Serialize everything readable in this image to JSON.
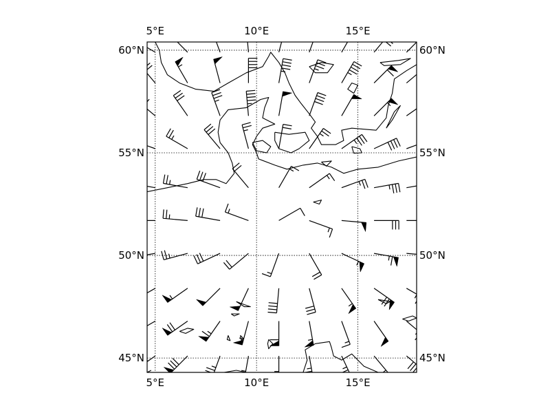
{
  "map": {
    "projection": "cylindrical",
    "lon_range": [
      4.6,
      17.9
    ],
    "lat_range": [
      44.3,
      60.4
    ],
    "colors": {
      "coastline": "#000000",
      "barbs": "#000000",
      "background": "#ffffff"
    },
    "grid": {
      "on": true,
      "style": "dotted"
    },
    "x_ticks": [
      {
        "lon": 5,
        "label": "5°E"
      },
      {
        "lon": 10,
        "label": "10°E"
      },
      {
        "lon": 15,
        "label": "15°E"
      }
    ],
    "y_ticks": [
      {
        "lat": 60,
        "label": "60°N"
      },
      {
        "lat": 55,
        "label": "55°N"
      },
      {
        "lat": 50,
        "label": "50°N"
      },
      {
        "lat": 45,
        "label": "45°N"
      }
    ],
    "coastlines": [
      [
        [
          4.6,
          53.1
        ],
        [
          5.6,
          53.3
        ],
        [
          6.6,
          53.5
        ],
        [
          7.4,
          53.7
        ],
        [
          8.0,
          53.7
        ],
        [
          8.5,
          53.5
        ],
        [
          8.9,
          54.0
        ],
        [
          8.8,
          54.5
        ],
        [
          8.6,
          55.0
        ],
        [
          8.2,
          55.5
        ],
        [
          8.1,
          56.0
        ],
        [
          8.2,
          56.6
        ],
        [
          8.6,
          57.1
        ],
        [
          9.5,
          57.2
        ],
        [
          10.2,
          57.6
        ],
        [
          10.6,
          57.7
        ],
        [
          10.4,
          57.2
        ],
        [
          10.3,
          56.7
        ],
        [
          10.9,
          56.4
        ],
        [
          10.3,
          56.2
        ],
        [
          10.0,
          55.8
        ],
        [
          9.8,
          55.4
        ],
        [
          10.0,
          55.0
        ],
        [
          10.1,
          54.7
        ],
        [
          10.9,
          54.4
        ],
        [
          11.5,
          54.2
        ],
        [
          12.3,
          54.4
        ],
        [
          13.0,
          54.5
        ],
        [
          13.7,
          54.3
        ],
        [
          14.3,
          54.0
        ],
        [
          15.0,
          54.2
        ],
        [
          16.0,
          54.3
        ],
        [
          17.0,
          54.6
        ],
        [
          17.9,
          54.8
        ]
      ],
      [
        [
          7.9,
          58.0
        ],
        [
          7.0,
          58.1
        ],
        [
          6.2,
          58.4
        ],
        [
          5.6,
          58.8
        ],
        [
          5.3,
          59.4
        ],
        [
          5.2,
          60.0
        ],
        [
          5.0,
          60.4
        ]
      ],
      [
        [
          7.9,
          58.0
        ],
        [
          8.6,
          58.4
        ],
        [
          9.5,
          58.9
        ],
        [
          10.3,
          59.2
        ],
        [
          10.6,
          59.7
        ],
        [
          10.7,
          59.9
        ],
        [
          11.1,
          59.4
        ],
        [
          11.4,
          58.9
        ],
        [
          11.6,
          58.4
        ],
        [
          11.9,
          57.8
        ],
        [
          12.2,
          57.4
        ],
        [
          12.6,
          56.9
        ],
        [
          12.9,
          56.5
        ],
        [
          12.7,
          56.2
        ],
        [
          13.0,
          55.8
        ],
        [
          13.2,
          55.4
        ],
        [
          13.9,
          55.4
        ],
        [
          14.3,
          55.6
        ],
        [
          14.2,
          56.1
        ],
        [
          14.7,
          56.2
        ],
        [
          15.9,
          56.1
        ],
        [
          16.4,
          56.7
        ],
        [
          16.5,
          57.3
        ],
        [
          16.7,
          57.9
        ],
        [
          16.8,
          58.6
        ],
        [
          17.4,
          59.0
        ],
        [
          17.9,
          59.3
        ]
      ],
      [
        [
          10.9,
          56.0
        ],
        [
          11.6,
          55.9
        ],
        [
          12.4,
          56.0
        ],
        [
          12.6,
          55.6
        ],
        [
          12.1,
          55.2
        ],
        [
          11.7,
          55.0
        ],
        [
          11.1,
          55.2
        ],
        [
          10.9,
          55.6
        ],
        [
          10.9,
          56.0
        ]
      ],
      [
        [
          9.8,
          55.5
        ],
        [
          10.3,
          55.6
        ],
        [
          10.7,
          55.3
        ],
        [
          10.5,
          55.0
        ],
        [
          10.0,
          55.1
        ],
        [
          9.8,
          55.5
        ]
      ],
      [
        [
          14.7,
          55.3
        ],
        [
          15.1,
          55.2
        ],
        [
          15.2,
          55.0
        ],
        [
          14.8,
          54.98
        ],
        [
          14.7,
          55.3
        ]
      ],
      [
        [
          16.4,
          56.2
        ],
        [
          16.7,
          56.6
        ],
        [
          17.1,
          57.3
        ],
        [
          16.8,
          57.0
        ],
        [
          16.4,
          56.2
        ]
      ],
      [
        [
          12.3,
          44.3
        ],
        [
          12.5,
          44.9
        ],
        [
          12.4,
          45.4
        ],
        [
          12.9,
          45.7
        ],
        [
          13.6,
          45.8
        ],
        [
          13.7,
          45.5
        ],
        [
          13.8,
          45.1
        ],
        [
          14.2,
          44.9
        ],
        [
          14.7,
          45.2
        ],
        [
          15.3,
          44.6
        ],
        [
          16.0,
          44.3
        ]
      ],
      [
        [
          8.4,
          44.3
        ],
        [
          9.0,
          44.4
        ],
        [
          9.5,
          44.3
        ]
      ],
      [
        [
          4.6,
          44.3
        ],
        [
          4.8,
          44.4
        ]
      ],
      [
        [
          13.2,
          54.55
        ],
        [
          13.7,
          54.6
        ],
        [
          13.45,
          54.35
        ],
        [
          13.2,
          54.55
        ]
      ]
    ],
    "lakes": [
      [
        [
          6.2,
          46.3
        ],
        [
          6.6,
          46.45
        ],
        [
          6.9,
          46.4
        ],
        [
          6.5,
          46.2
        ],
        [
          6.2,
          46.3
        ]
      ],
      [
        [
          9.0,
          47.75
        ],
        [
          9.4,
          47.6
        ],
        [
          9.7,
          47.5
        ],
        [
          9.4,
          47.5
        ],
        [
          9.0,
          47.75
        ]
      ],
      [
        [
          8.75,
          47.15
        ],
        [
          9.15,
          47.15
        ],
        [
          8.9,
          47.05
        ],
        [
          8.75,
          47.15
        ]
      ],
      [
        [
          10.6,
          45.9
        ],
        [
          10.8,
          45.7
        ],
        [
          10.6,
          45.45
        ],
        [
          10.55,
          45.7
        ],
        [
          10.6,
          45.9
        ]
      ],
      [
        [
          9.2,
          46.1
        ],
        [
          9.35,
          45.95
        ],
        [
          9.25,
          45.85
        ],
        [
          9.2,
          46.1
        ]
      ],
      [
        [
          8.6,
          46.1
        ],
        [
          8.7,
          45.85
        ],
        [
          8.55,
          45.9
        ],
        [
          8.6,
          46.1
        ]
      ],
      [
        [
          16.0,
          47.85
        ],
        [
          16.6,
          47.75
        ],
        [
          16.4,
          47.65
        ],
        [
          16.0,
          47.85
        ]
      ],
      [
        [
          17.2,
          46.9
        ],
        [
          17.7,
          47.05
        ],
        [
          17.9,
          46.95
        ],
        [
          17.5,
          46.8
        ],
        [
          17.2,
          46.9
        ]
      ],
      [
        [
          12.8,
          52.6
        ],
        [
          13.2,
          52.7
        ],
        [
          13.1,
          52.5
        ],
        [
          12.8,
          52.6
        ]
      ],
      [
        [
          14.8,
          57.9
        ],
        [
          15.0,
          58.3
        ],
        [
          14.7,
          58.4
        ],
        [
          14.5,
          58.1
        ],
        [
          14.8,
          57.9
        ]
      ],
      [
        [
          12.6,
          59.2
        ],
        [
          13.2,
          59.4
        ],
        [
          13.8,
          59.3
        ],
        [
          13.5,
          58.9
        ],
        [
          12.9,
          58.9
        ],
        [
          12.6,
          59.2
        ]
      ],
      [
        [
          16.1,
          59.4
        ],
        [
          17.0,
          59.5
        ],
        [
          17.6,
          59.6
        ],
        [
          17.1,
          59.3
        ],
        [
          16.3,
          59.25
        ],
        [
          16.1,
          59.4
        ]
      ]
    ],
    "barbs": [
      {
        "lon": 5.0,
        "lat": 59.9,
        "dir": 300,
        "spd": 75
      },
      {
        "lon": 6.6,
        "lat": 59.9,
        "dir": 315,
        "spd": 60
      },
      {
        "lon": 8.2,
        "lat": 59.9,
        "dir": 340,
        "spd": 55
      },
      {
        "lon": 9.6,
        "lat": 59.9,
        "dir": 355,
        "spd": 55
      },
      {
        "lon": 11.1,
        "lat": 59.9,
        "dir": 15,
        "spd": 60
      },
      {
        "lon": 12.6,
        "lat": 59.9,
        "dir": 20,
        "spd": 55
      },
      {
        "lon": 14.2,
        "lat": 59.9,
        "dir": 30,
        "spd": 65
      },
      {
        "lon": 15.8,
        "lat": 59.9,
        "dir": 40,
        "spd": 70
      },
      {
        "lon": 17.4,
        "lat": 59.9,
        "dir": 45,
        "spd": 70
      },
      {
        "lon": 5.0,
        "lat": 58.4,
        "dir": 320,
        "spd": 70
      },
      {
        "lon": 6.6,
        "lat": 58.4,
        "dir": 330,
        "spd": 55
      },
      {
        "lon": 8.2,
        "lat": 58.4,
        "dir": 345,
        "spd": 50
      },
      {
        "lon": 9.6,
        "lat": 58.4,
        "dir": 0,
        "spd": 40
      },
      {
        "lon": 11.1,
        "lat": 58.4,
        "dir": 10,
        "spd": 45
      },
      {
        "lon": 12.6,
        "lat": 58.4,
        "dir": 20,
        "spd": 35
      },
      {
        "lon": 14.2,
        "lat": 58.4,
        "dir": 30,
        "spd": 45
      },
      {
        "lon": 15.8,
        "lat": 58.4,
        "dir": 45,
        "spd": 60
      },
      {
        "lon": 17.4,
        "lat": 58.4,
        "dir": 50,
        "spd": 70
      },
      {
        "lon": 5.0,
        "lat": 56.8,
        "dir": 310,
        "spd": 40
      },
      {
        "lon": 6.6,
        "lat": 56.8,
        "dir": 325,
        "spd": 30
      },
      {
        "lon": 8.2,
        "lat": 56.8,
        "dir": 340,
        "spd": 35
      },
      {
        "lon": 9.6,
        "lat": 56.8,
        "dir": 355,
        "spd": 45
      },
      {
        "lon": 11.1,
        "lat": 56.8,
        "dir": 10,
        "spd": 50
      },
      {
        "lon": 12.6,
        "lat": 56.8,
        "dir": 20,
        "spd": 40
      },
      {
        "lon": 14.2,
        "lat": 56.8,
        "dir": 30,
        "spd": 50
      },
      {
        "lon": 15.8,
        "lat": 56.8,
        "dir": 45,
        "spd": 55
      },
      {
        "lon": 17.4,
        "lat": 56.8,
        "dir": 55,
        "spd": 60
      },
      {
        "lon": 5.0,
        "lat": 55.2,
        "dir": 290,
        "spd": 30
      },
      {
        "lon": 6.6,
        "lat": 55.2,
        "dir": 300,
        "spd": 25
      },
      {
        "lon": 8.2,
        "lat": 55.2,
        "dir": 320,
        "spd": 30
      },
      {
        "lon": 9.6,
        "lat": 55.2,
        "dir": 345,
        "spd": 25
      },
      {
        "lon": 11.1,
        "lat": 55.2,
        "dir": 10,
        "spd": 20
      },
      {
        "lon": 12.6,
        "lat": 55.2,
        "dir": 35,
        "spd": 25
      },
      {
        "lon": 14.2,
        "lat": 55.2,
        "dir": 55,
        "spd": 35
      },
      {
        "lon": 15.8,
        "lat": 55.2,
        "dir": 65,
        "spd": 40
      },
      {
        "lon": 17.4,
        "lat": 55.2,
        "dir": 70,
        "spd": 45
      },
      {
        "lon": 5.0,
        "lat": 53.3,
        "dir": 280,
        "spd": 30
      },
      {
        "lon": 6.6,
        "lat": 53.3,
        "dir": 280,
        "spd": 25
      },
      {
        "lon": 8.2,
        "lat": 53.3,
        "dir": 290,
        "spd": 30
      },
      {
        "lon": 9.6,
        "lat": 53.3,
        "dir": 320,
        "spd": 20
      },
      {
        "lon": 11.1,
        "lat": 53.3,
        "dir": 30,
        "spd": 15
      },
      {
        "lon": 12.6,
        "lat": 53.3,
        "dir": 55,
        "spd": 15
      },
      {
        "lon": 14.2,
        "lat": 53.3,
        "dir": 70,
        "spd": 25
      },
      {
        "lon": 15.8,
        "lat": 53.3,
        "dir": 80,
        "spd": 35
      },
      {
        "lon": 17.4,
        "lat": 53.3,
        "dir": 80,
        "spd": 40
      },
      {
        "lon": 5.0,
        "lat": 51.7,
        "dir": 270,
        "spd": 30
      },
      {
        "lon": 6.6,
        "lat": 51.7,
        "dir": 275,
        "spd": 25
      },
      {
        "lon": 8.2,
        "lat": 51.7,
        "dir": 280,
        "spd": 30
      },
      {
        "lon": 9.6,
        "lat": 51.7,
        "dir": 290,
        "spd": 15
      },
      {
        "lon": 11.1,
        "lat": 51.7,
        "dir": 60,
        "spd": 10
      },
      {
        "lon": 12.6,
        "lat": 51.7,
        "dir": 110,
        "spd": 15
      },
      {
        "lon": 14.2,
        "lat": 51.7,
        "dir": 95,
        "spd": 50
      },
      {
        "lon": 15.8,
        "lat": 51.7,
        "dir": 90,
        "spd": 30
      },
      {
        "lon": 17.4,
        "lat": 51.7,
        "dir": 90,
        "spd": 40
      },
      {
        "lon": 5.0,
        "lat": 50.1,
        "dir": 260,
        "spd": 25
      },
      {
        "lon": 6.6,
        "lat": 50.1,
        "dir": 255,
        "spd": 25
      },
      {
        "lon": 8.2,
        "lat": 50.1,
        "dir": 245,
        "spd": 30
      },
      {
        "lon": 9.6,
        "lat": 50.1,
        "dir": 230,
        "spd": 20
      },
      {
        "lon": 11.1,
        "lat": 50.1,
        "dir": 200,
        "spd": 15
      },
      {
        "lon": 12.6,
        "lat": 50.1,
        "dir": 150,
        "spd": 20
      },
      {
        "lon": 14.2,
        "lat": 50.1,
        "dir": 115,
        "spd": 55
      },
      {
        "lon": 15.8,
        "lat": 50.1,
        "dir": 100,
        "spd": 65
      },
      {
        "lon": 17.4,
        "lat": 50.1,
        "dir": 95,
        "spd": 40
      },
      {
        "lon": 5.0,
        "lat": 48.4,
        "dir": 240,
        "spd": 55
      },
      {
        "lon": 6.6,
        "lat": 48.4,
        "dir": 235,
        "spd": 55
      },
      {
        "lon": 8.2,
        "lat": 48.4,
        "dir": 225,
        "spd": 50
      },
      {
        "lon": 9.6,
        "lat": 48.4,
        "dir": 205,
        "spd": 50
      },
      {
        "lon": 11.1,
        "lat": 48.4,
        "dir": 185,
        "spd": 40
      },
      {
        "lon": 12.6,
        "lat": 48.4,
        "dir": 165,
        "spd": 30
      },
      {
        "lon": 14.2,
        "lat": 48.4,
        "dir": 145,
        "spd": 55
      },
      {
        "lon": 15.8,
        "lat": 48.4,
        "dir": 125,
        "spd": 70
      },
      {
        "lon": 17.4,
        "lat": 48.4,
        "dir": 120,
        "spd": 45
      },
      {
        "lon": 5.0,
        "lat": 46.8,
        "dir": 240,
        "spd": 50
      },
      {
        "lon": 6.6,
        "lat": 46.8,
        "dir": 235,
        "spd": 70
      },
      {
        "lon": 8.2,
        "lat": 46.8,
        "dir": 215,
        "spd": 65
      },
      {
        "lon": 9.6,
        "lat": 46.8,
        "dir": 195,
        "spd": 55
      },
      {
        "lon": 11.1,
        "lat": 46.8,
        "dir": 180,
        "spd": 60
      },
      {
        "lon": 12.6,
        "lat": 46.8,
        "dir": 170,
        "spd": 55
      },
      {
        "lon": 14.2,
        "lat": 46.8,
        "dir": 160,
        "spd": 15
      },
      {
        "lon": 15.8,
        "lat": 46.8,
        "dir": 145,
        "spd": 50
      },
      {
        "lon": 17.4,
        "lat": 46.8,
        "dir": 130,
        "spd": 65
      },
      {
        "lon": 5.0,
        "lat": 45.1,
        "dir": 235,
        "spd": 90
      },
      {
        "lon": 6.6,
        "lat": 45.1,
        "dir": 225,
        "spd": 80
      },
      {
        "lon": 8.2,
        "lat": 45.1,
        "dir": 200,
        "spd": 75
      },
      {
        "lon": 9.6,
        "lat": 45.1,
        "dir": 190,
        "spd": 65
      },
      {
        "lon": 11.1,
        "lat": 45.1,
        "dir": 180,
        "spd": 65
      },
      {
        "lon": 12.6,
        "lat": 45.1,
        "dir": 170,
        "spd": 75
      },
      {
        "lon": 14.2,
        "lat": 45.1,
        "dir": 155,
        "spd": 45
      },
      {
        "lon": 15.8,
        "lat": 45.1,
        "dir": 140,
        "spd": 30
      },
      {
        "lon": 17.4,
        "lat": 45.1,
        "dir": 130,
        "spd": 90
      }
    ]
  }
}
